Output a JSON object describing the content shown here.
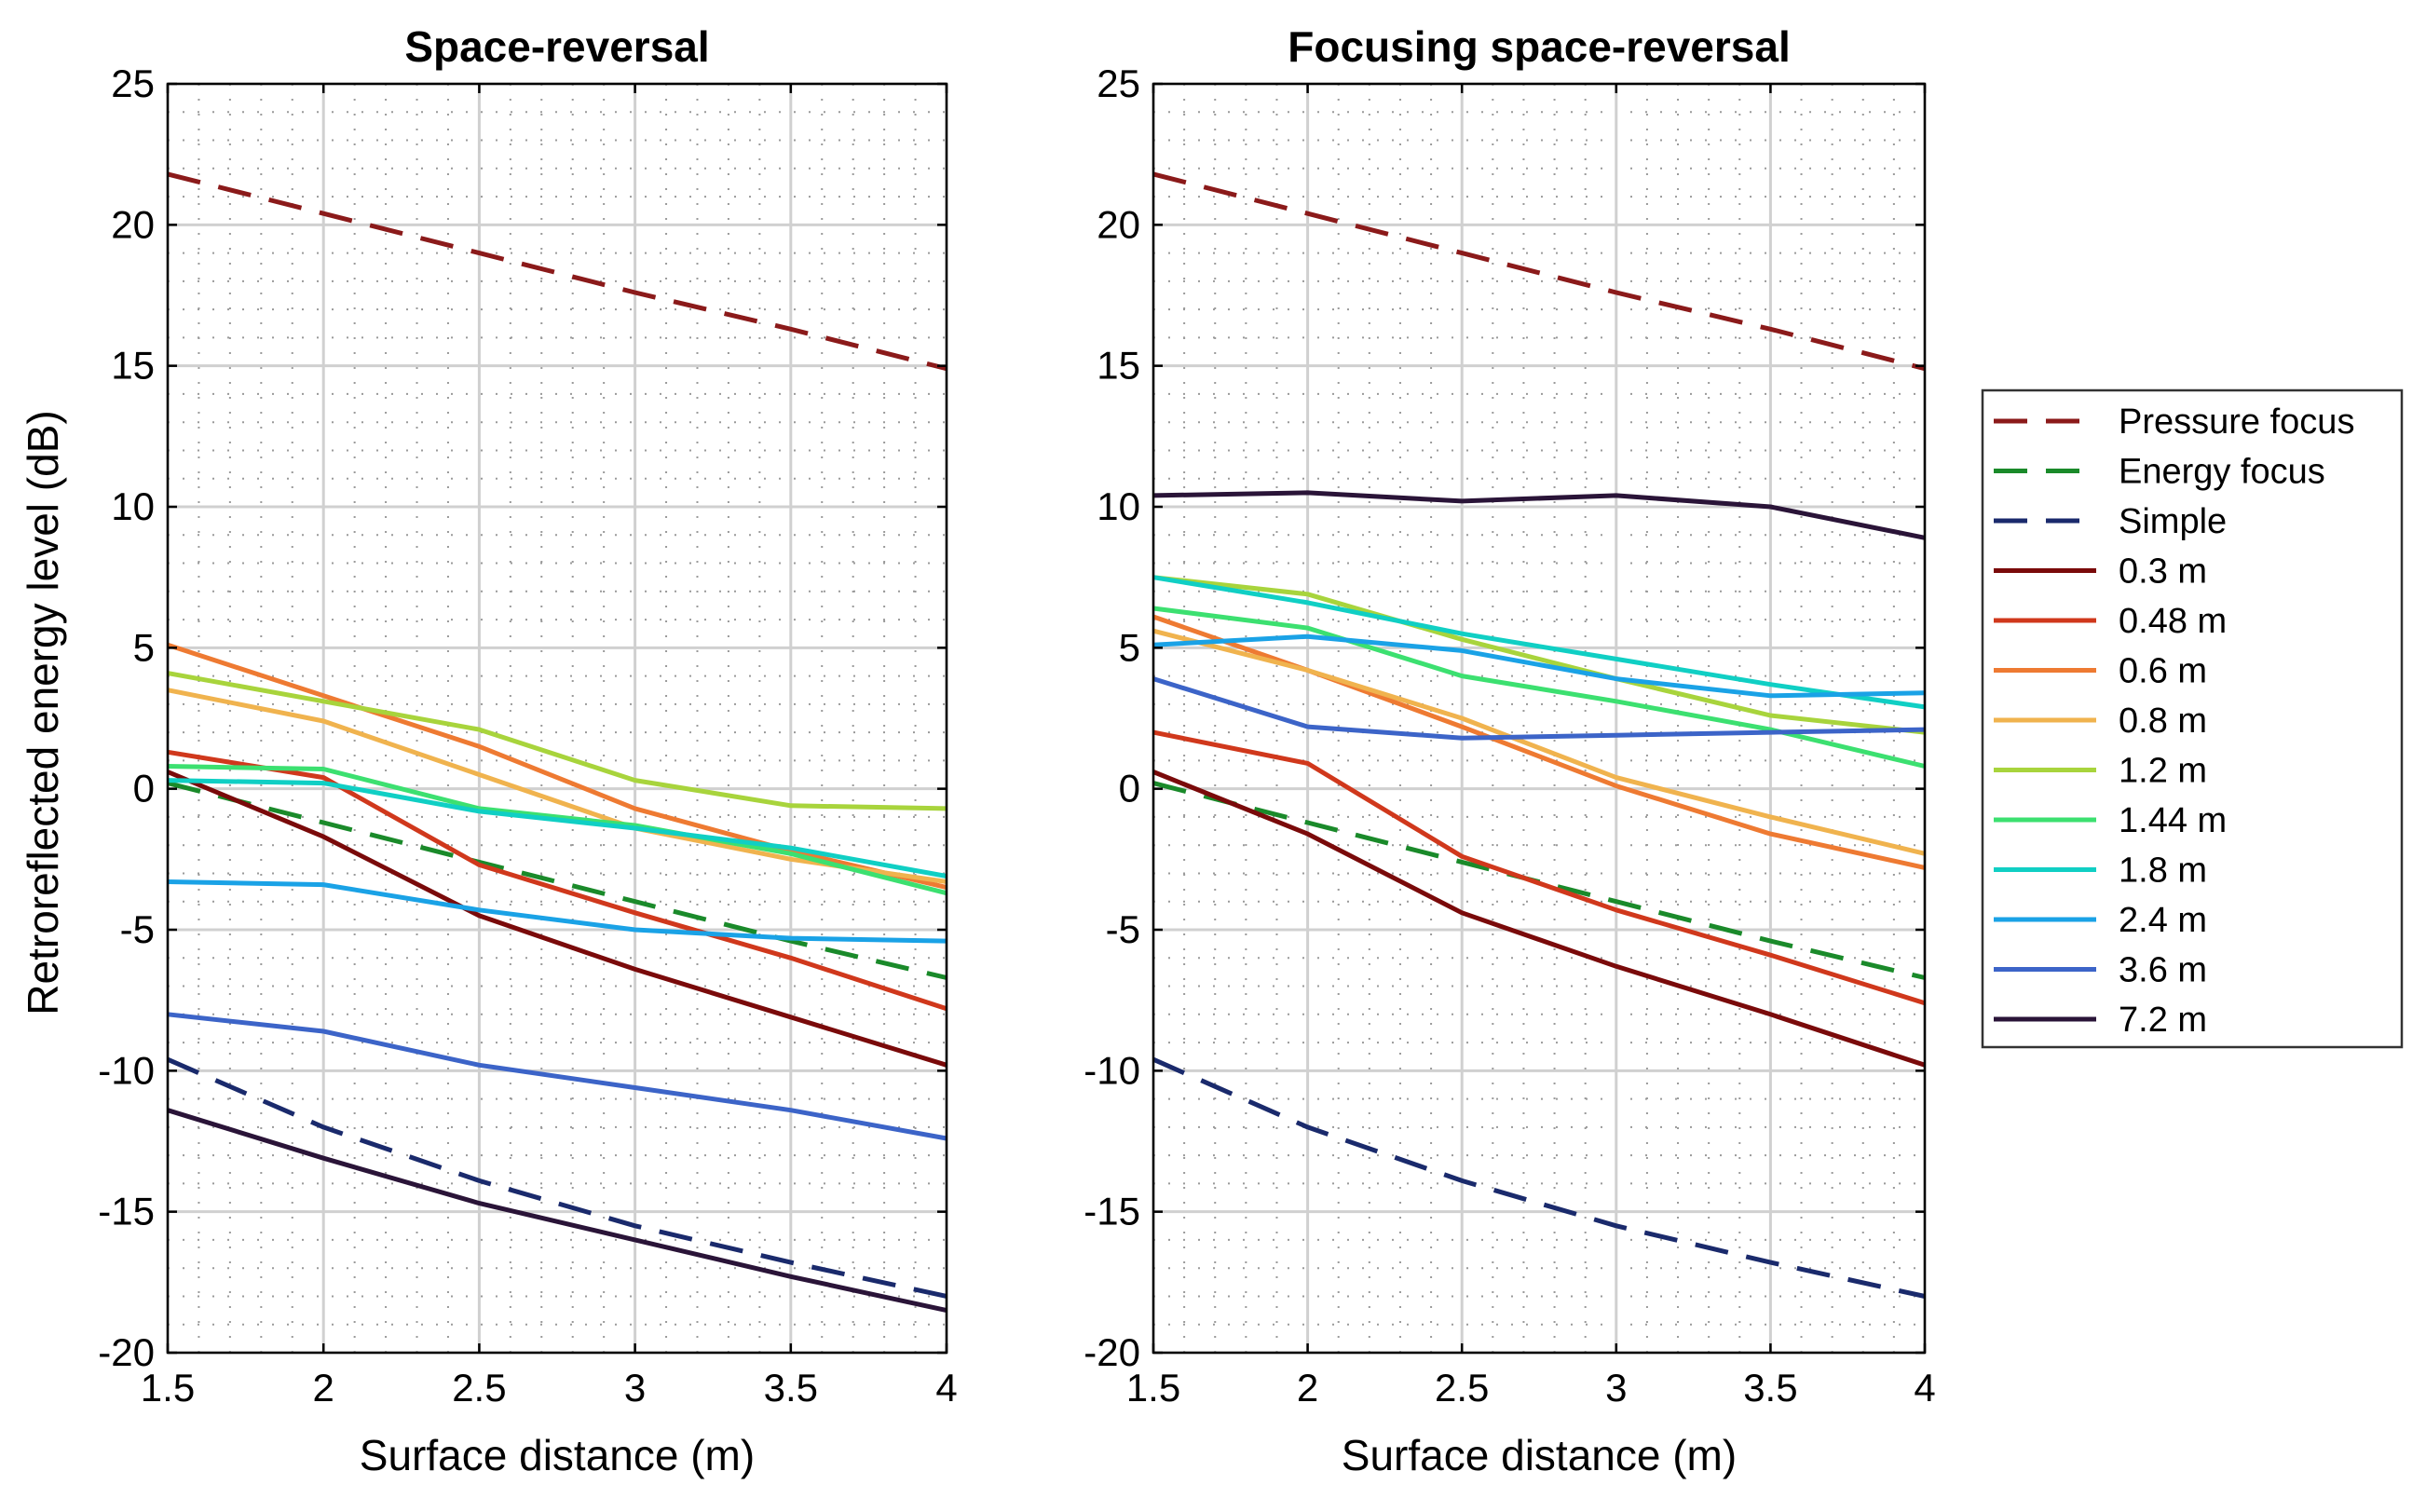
{
  "ylabel": "Retroreflected energy level (dB)",
  "legend": [
    {
      "name": "Pressure focus",
      "color": "#8b1a1a",
      "dashed": true
    },
    {
      "name": "Energy focus",
      "color": "#1a8a2a",
      "dashed": true
    },
    {
      "name": "Simple",
      "color": "#1a2a6c",
      "dashed": true
    },
    {
      "name": "0.3 m",
      "color": "#7a0a0a",
      "dashed": false
    },
    {
      "name": "0.48 m",
      "color": "#d0381c",
      "dashed": false
    },
    {
      "name": "0.6 m",
      "color": "#ee7a32",
      "dashed": false
    },
    {
      "name": "0.8 m",
      "color": "#f0b34e",
      "dashed": false
    },
    {
      "name": "1.2 m",
      "color": "#a8d43c",
      "dashed": false
    },
    {
      "name": "1.44 m",
      "color": "#3ce070",
      "dashed": false
    },
    {
      "name": "1.8 m",
      "color": "#10cfc4",
      "dashed": false
    },
    {
      "name": "2.4 m",
      "color": "#1aa2e6",
      "dashed": false
    },
    {
      "name": "3.6 m",
      "color": "#3c64c8",
      "dashed": false
    },
    {
      "name": "7.2 m",
      "color": "#2a1438",
      "dashed": false
    }
  ],
  "chart_data": [
    {
      "type": "line",
      "title": "Space-reversal",
      "xlabel": "Surface distance (m)",
      "ylabel": "Retroreflected energy level (dB)",
      "xlim": [
        1.5,
        4
      ],
      "ylim": [
        -20,
        25
      ],
      "x": [
        1.5,
        2,
        2.5,
        3,
        3.5,
        4
      ],
      "xticks": [
        "1.5",
        "2",
        "2.5",
        "3",
        "3.5",
        "4"
      ],
      "yticks": [
        "25",
        "20",
        "15",
        "10",
        "5",
        "0",
        "-5",
        "-10",
        "-15",
        "-20"
      ],
      "grid": true,
      "series": [
        {
          "name": "Pressure focus",
          "values": [
            21.8,
            20.4,
            19.0,
            17.6,
            16.3,
            14.9
          ]
        },
        {
          "name": "Energy focus",
          "values": [
            0.2,
            -1.2,
            -2.6,
            -4.0,
            -5.4,
            -6.7
          ]
        },
        {
          "name": "Simple",
          "values": [
            -9.6,
            -12.0,
            -13.9,
            -15.5,
            -16.8,
            -18.0
          ]
        },
        {
          "name": "0.3 m",
          "values": [
            0.6,
            -1.7,
            -4.5,
            -6.4,
            -8.1,
            -9.8
          ]
        },
        {
          "name": "0.48 m",
          "values": [
            1.3,
            0.4,
            -2.7,
            -4.4,
            -6.0,
            -7.8
          ]
        },
        {
          "name": "0.6 m",
          "values": [
            5.1,
            3.3,
            1.5,
            -0.7,
            -2.2,
            -3.5
          ]
        },
        {
          "name": "0.8 m",
          "values": [
            3.5,
            2.4,
            0.5,
            -1.4,
            -2.5,
            -3.3
          ]
        },
        {
          "name": "1.2 m",
          "values": [
            4.1,
            3.1,
            2.1,
            0.3,
            -0.6,
            -0.7
          ]
        },
        {
          "name": "1.44 m",
          "values": [
            0.8,
            0.7,
            -0.7,
            -1.3,
            -2.3,
            -3.7
          ]
        },
        {
          "name": "1.8 m",
          "values": [
            0.3,
            0.2,
            -0.8,
            -1.4,
            -2.1,
            -3.1
          ]
        },
        {
          "name": "2.4 m",
          "values": [
            -3.3,
            -3.4,
            -4.3,
            -5.0,
            -5.3,
            -5.4
          ]
        },
        {
          "name": "3.6 m",
          "values": [
            -8.0,
            -8.6,
            -9.8,
            -10.6,
            -11.4,
            -12.4
          ]
        },
        {
          "name": "7.2 m",
          "values": [
            -11.4,
            -13.1,
            -14.7,
            -16.0,
            -17.3,
            -18.5
          ]
        }
      ]
    },
    {
      "type": "line",
      "title": "Focusing space-reversal",
      "xlabel": "Surface distance (m)",
      "ylabel": "",
      "xlim": [
        1.5,
        4
      ],
      "ylim": [
        -20,
        25
      ],
      "x": [
        1.5,
        2,
        2.5,
        3,
        3.5,
        4
      ],
      "xticks": [
        "1.5",
        "2",
        "2.5",
        "3",
        "3.5",
        "4"
      ],
      "yticks": [
        "25",
        "20",
        "15",
        "10",
        "5",
        "0",
        "-5",
        "-10",
        "-15",
        "-20"
      ],
      "grid": true,
      "series": [
        {
          "name": "Pressure focus",
          "values": [
            21.8,
            20.4,
            19.0,
            17.6,
            16.3,
            14.9
          ]
        },
        {
          "name": "Energy focus",
          "values": [
            0.2,
            -1.2,
            -2.6,
            -4.0,
            -5.4,
            -6.7
          ]
        },
        {
          "name": "Simple",
          "values": [
            -9.6,
            -12.0,
            -13.9,
            -15.5,
            -16.8,
            -18.0
          ]
        },
        {
          "name": "0.3 m",
          "values": [
            0.6,
            -1.6,
            -4.4,
            -6.3,
            -8.0,
            -9.8
          ]
        },
        {
          "name": "0.48 m",
          "values": [
            2.0,
            0.9,
            -2.4,
            -4.3,
            -5.9,
            -7.6
          ]
        },
        {
          "name": "0.6 m",
          "values": [
            6.1,
            4.2,
            2.2,
            0.1,
            -1.6,
            -2.8
          ]
        },
        {
          "name": "0.8 m",
          "values": [
            5.6,
            4.2,
            2.5,
            0.4,
            -1.0,
            -2.3
          ]
        },
        {
          "name": "1.2 m",
          "values": [
            7.5,
            6.9,
            5.3,
            3.9,
            2.6,
            2.0
          ]
        },
        {
          "name": "1.44 m",
          "values": [
            6.4,
            5.7,
            4.0,
            3.1,
            2.1,
            0.8
          ]
        },
        {
          "name": "1.8 m",
          "values": [
            7.5,
            6.6,
            5.5,
            4.6,
            3.7,
            2.9
          ]
        },
        {
          "name": "2.4 m",
          "values": [
            5.1,
            5.4,
            4.9,
            3.9,
            3.3,
            3.4
          ]
        },
        {
          "name": "3.6 m",
          "values": [
            3.9,
            2.2,
            1.8,
            1.9,
            2.0,
            2.1
          ]
        },
        {
          "name": "7.2 m",
          "values": [
            10.4,
            10.5,
            10.2,
            10.4,
            10.0,
            8.9
          ]
        }
      ]
    }
  ]
}
